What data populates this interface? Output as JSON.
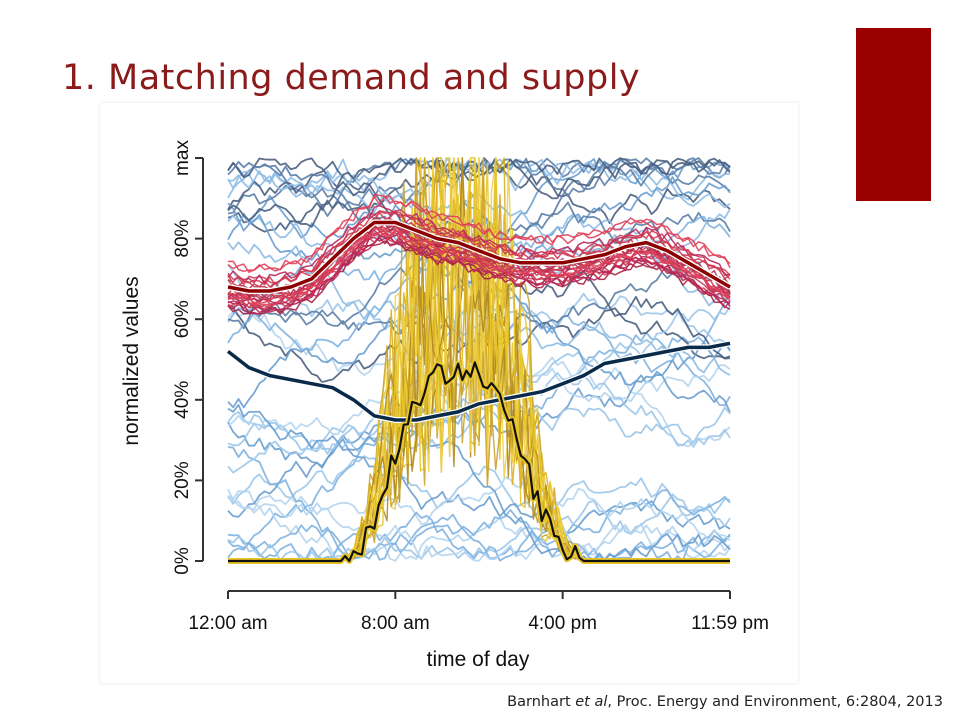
{
  "slide": {
    "title": "1. Matching demand and supply",
    "citation_authors": "Barnhart",
    "citation_etal": "et al",
    "citation_rest": ", Proc. Energy and Environment, 6:2804, 2013"
  },
  "colors": {
    "accent": "#9a0000",
    "title": "#8b1a1a",
    "demand_mean": "#8b0000",
    "demand_samples": "#c0334d",
    "solar_samples": "#e8c52a",
    "solar_mean": "#111111",
    "wind_samples": "#7fb3e0",
    "wind_mean": "#0a2a4a"
  },
  "chart_data": {
    "type": "line",
    "xlabel": "time of day",
    "ylabel": "normalized values",
    "x_ticks": [
      "12:00 am",
      "8:00 am",
      "4:00 pm",
      "11:59 pm"
    ],
    "x_tick_hours": [
      0,
      8,
      16,
      24
    ],
    "y_ticks": [
      "0%",
      "20%",
      "40%",
      "60%",
      "80%",
      "max"
    ],
    "y_tick_values": [
      0,
      20,
      40,
      60,
      80,
      100
    ],
    "xlim": [
      0,
      24
    ],
    "ylim": [
      0,
      100
    ],
    "grid": false,
    "x": [
      0,
      1,
      2,
      3,
      4,
      5,
      6,
      7,
      8,
      9,
      10,
      11,
      12,
      13,
      14,
      15,
      16,
      17,
      18,
      19,
      20,
      21,
      22,
      23,
      24
    ],
    "series": [
      {
        "role": "demand-mean",
        "values": [
          68,
          67,
          67,
          68,
          70,
          75,
          80,
          84,
          84,
          82,
          80,
          79,
          77,
          75,
          74,
          74,
          74,
          75,
          76,
          78,
          79,
          77,
          74,
          71,
          68
        ]
      },
      {
        "role": "wind-mean",
        "values": [
          52,
          48,
          46,
          45,
          44,
          43,
          40,
          36,
          35,
          35,
          36,
          37,
          39,
          40,
          41,
          42,
          44,
          46,
          49,
          50,
          51,
          52,
          53,
          53,
          54
        ]
      },
      {
        "role": "solar-mean",
        "values": [
          0,
          0,
          0,
          0,
          0,
          0,
          1,
          10,
          27,
          40,
          46,
          48,
          46,
          40,
          28,
          12,
          3,
          0,
          0,
          0,
          0,
          0,
          0,
          0,
          0
        ]
      }
    ]
  }
}
